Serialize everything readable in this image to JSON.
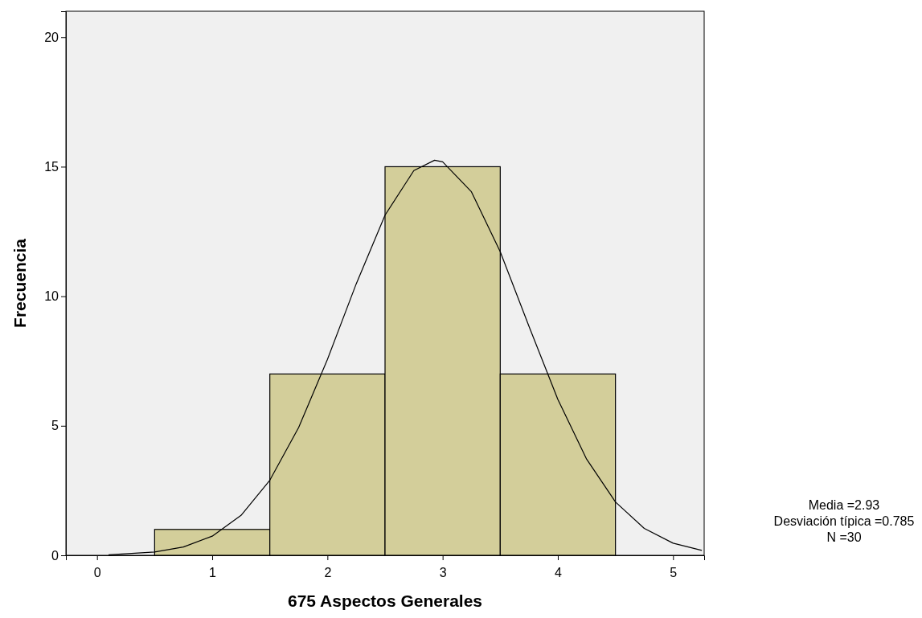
{
  "chart_data": {
    "type": "histogram",
    "xlabel": "675 Aspectos Generales",
    "ylabel": "Frecuencia",
    "bins": [
      0.5,
      1.5,
      2.5,
      3.5,
      4.5
    ],
    "values": [
      1,
      7,
      15,
      7
    ],
    "color": "#d3ce9a",
    "xlim": [
      -0.27,
      5.27
    ],
    "xticks": [
      0,
      1,
      2,
      3,
      4,
      5
    ],
    "ylim": [
      0,
      21
    ],
    "yticks": [
      0,
      5,
      10,
      15,
      20
    ],
    "grid": false,
    "series": [
      {
        "type": "line",
        "color": "#000000",
        "x": [
          0.1,
          0.5,
          0.75,
          1,
          1.25,
          1.5,
          1.75,
          2,
          2.25,
          2.5,
          2.75,
          2.93,
          3,
          3.25,
          3.5,
          3.75,
          4,
          4.25,
          4.5,
          4.75,
          5,
          5.25
        ],
        "values": [
          0.02,
          0.13,
          0.32,
          0.74,
          1.54,
          2.9,
          4.93,
          7.56,
          10.48,
          13.13,
          14.85,
          15.25,
          15.19,
          14.03,
          11.72,
          8.83,
          6.02,
          3.71,
          2.06,
          1.04,
          0.47,
          0.19
        ]
      }
    ],
    "marker": "none",
    "line_style": "solid",
    "annotations": [
      "Media =2.93",
      "Desviación típica =0.785",
      "N =30"
    ]
  }
}
